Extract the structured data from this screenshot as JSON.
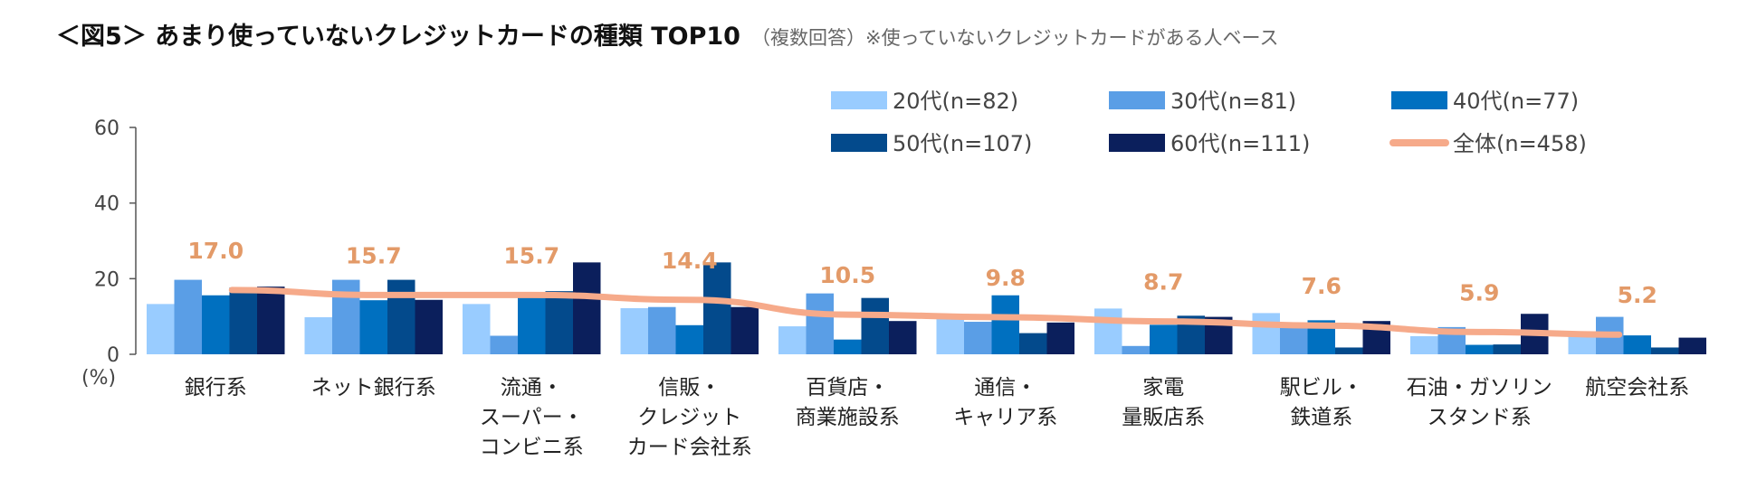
{
  "title": "＜図5＞ あまり使っていないクレジットカードの種類 TOP10",
  "subtitle": "（複数回答）※使っていないクレジットカードがある人ベース",
  "chart_data": {
    "type": "bar",
    "title": "＜図5＞ あまり使っていないクレジットカードの種類 TOP10",
    "ylabel": "(%)",
    "ylim": [
      0,
      60
    ],
    "yticks": [
      "0",
      "20",
      "40",
      "60"
    ],
    "grid": false,
    "legend_position": "top-right",
    "categories": [
      [
        "銀行系"
      ],
      [
        "ネット銀行系"
      ],
      [
        "流通・",
        "スーパー・",
        "コンビニ系"
      ],
      [
        "信販・",
        "クレジット",
        "カード会社系"
      ],
      [
        "百貨店・",
        "商業施設系"
      ],
      [
        "通信・",
        "キャリア系"
      ],
      [
        "家電",
        "量販店系"
      ],
      [
        "駅ビル・",
        "鉄道系"
      ],
      [
        "石油・ガソリン",
        "スタンド系"
      ],
      [
        "航空会社系"
      ]
    ],
    "series": [
      {
        "name": "20代(n=82)",
        "type": "bar",
        "color": "#99ccff",
        "values": [
          13.3,
          9.8,
          13.3,
          12.2,
          7.4,
          10.7,
          12.1,
          10.9,
          4.8,
          5.4
        ]
      },
      {
        "name": "30代(n=81)",
        "type": "bar",
        "color": "#5a9ee6",
        "values": [
          19.7,
          19.7,
          4.9,
          12.5,
          16.1,
          8.6,
          2.2,
          7.4,
          7.2,
          9.9
        ]
      },
      {
        "name": "40代(n=77)",
        "type": "bar",
        "color": "#0070c0",
        "values": [
          15.6,
          14.3,
          15.5,
          7.7,
          3.9,
          15.6,
          7.8,
          9.0,
          2.5,
          5.0
        ]
      },
      {
        "name": "50代(n=107)",
        "type": "bar",
        "color": "#034a8c",
        "values": [
          17.7,
          19.7,
          16.7,
          24.3,
          14.9,
          5.6,
          10.2,
          1.8,
          2.6,
          1.8
        ]
      },
      {
        "name": "60代(n=111)",
        "type": "bar",
        "color": "#0b1f5c",
        "values": [
          17.9,
          14.4,
          24.3,
          12.5,
          8.8,
          8.4,
          9.9,
          8.8,
          10.7,
          4.4
        ]
      },
      {
        "name": "全体(n=458)",
        "type": "line",
        "color": "#f6aa8a",
        "values": [
          17.0,
          15.7,
          15.7,
          14.4,
          10.5,
          9.8,
          8.7,
          7.6,
          5.9,
          5.2
        ],
        "data_labels": [
          "17.0",
          "15.7",
          "15.7",
          "14.4",
          "10.5",
          "9.8",
          "8.7",
          "7.6",
          "5.9",
          "5.2"
        ]
      }
    ]
  }
}
